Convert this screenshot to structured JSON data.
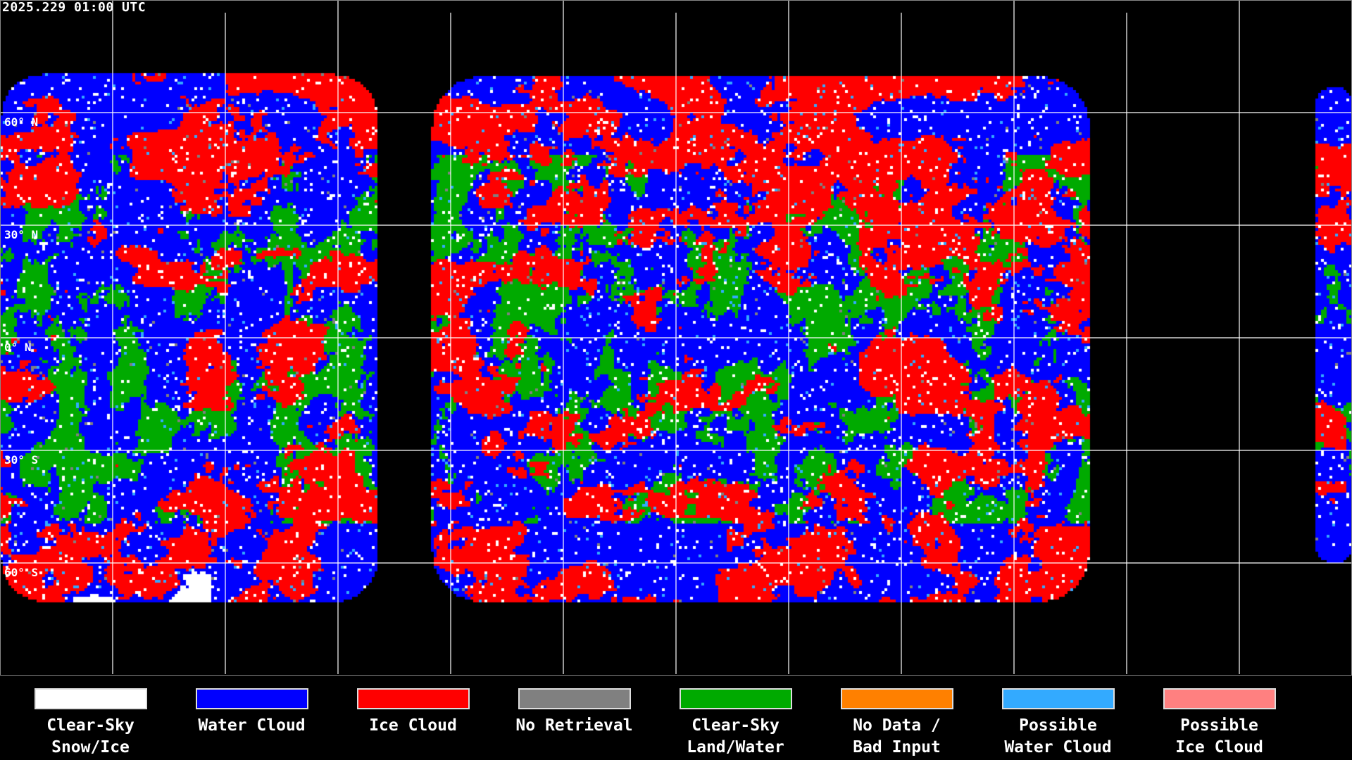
{
  "timestamp": "2025.229 01:00 UTC",
  "latitude_labels": [
    "60° N",
    "30° N",
    "0° N",
    "30° S",
    "60° S"
  ],
  "legend": [
    {
      "label": "Clear-Sky\nSnow/Ice",
      "color": "#ffffff"
    },
    {
      "label": "Water Cloud",
      "color": "#0000ff"
    },
    {
      "label": "Ice Cloud",
      "color": "#ff0000"
    },
    {
      "label": "No Retrieval",
      "color": "#808080"
    },
    {
      "label": "Clear-Sky\nLand/Water",
      "color": "#00aa00"
    },
    {
      "label": "No Data /\nBad Input",
      "color": "#ff8000"
    },
    {
      "label": "Possible\nWater Cloud",
      "color": "#33aaff"
    },
    {
      "label": "Possible\nIce Cloud",
      "color": "#ff8080"
    }
  ]
}
